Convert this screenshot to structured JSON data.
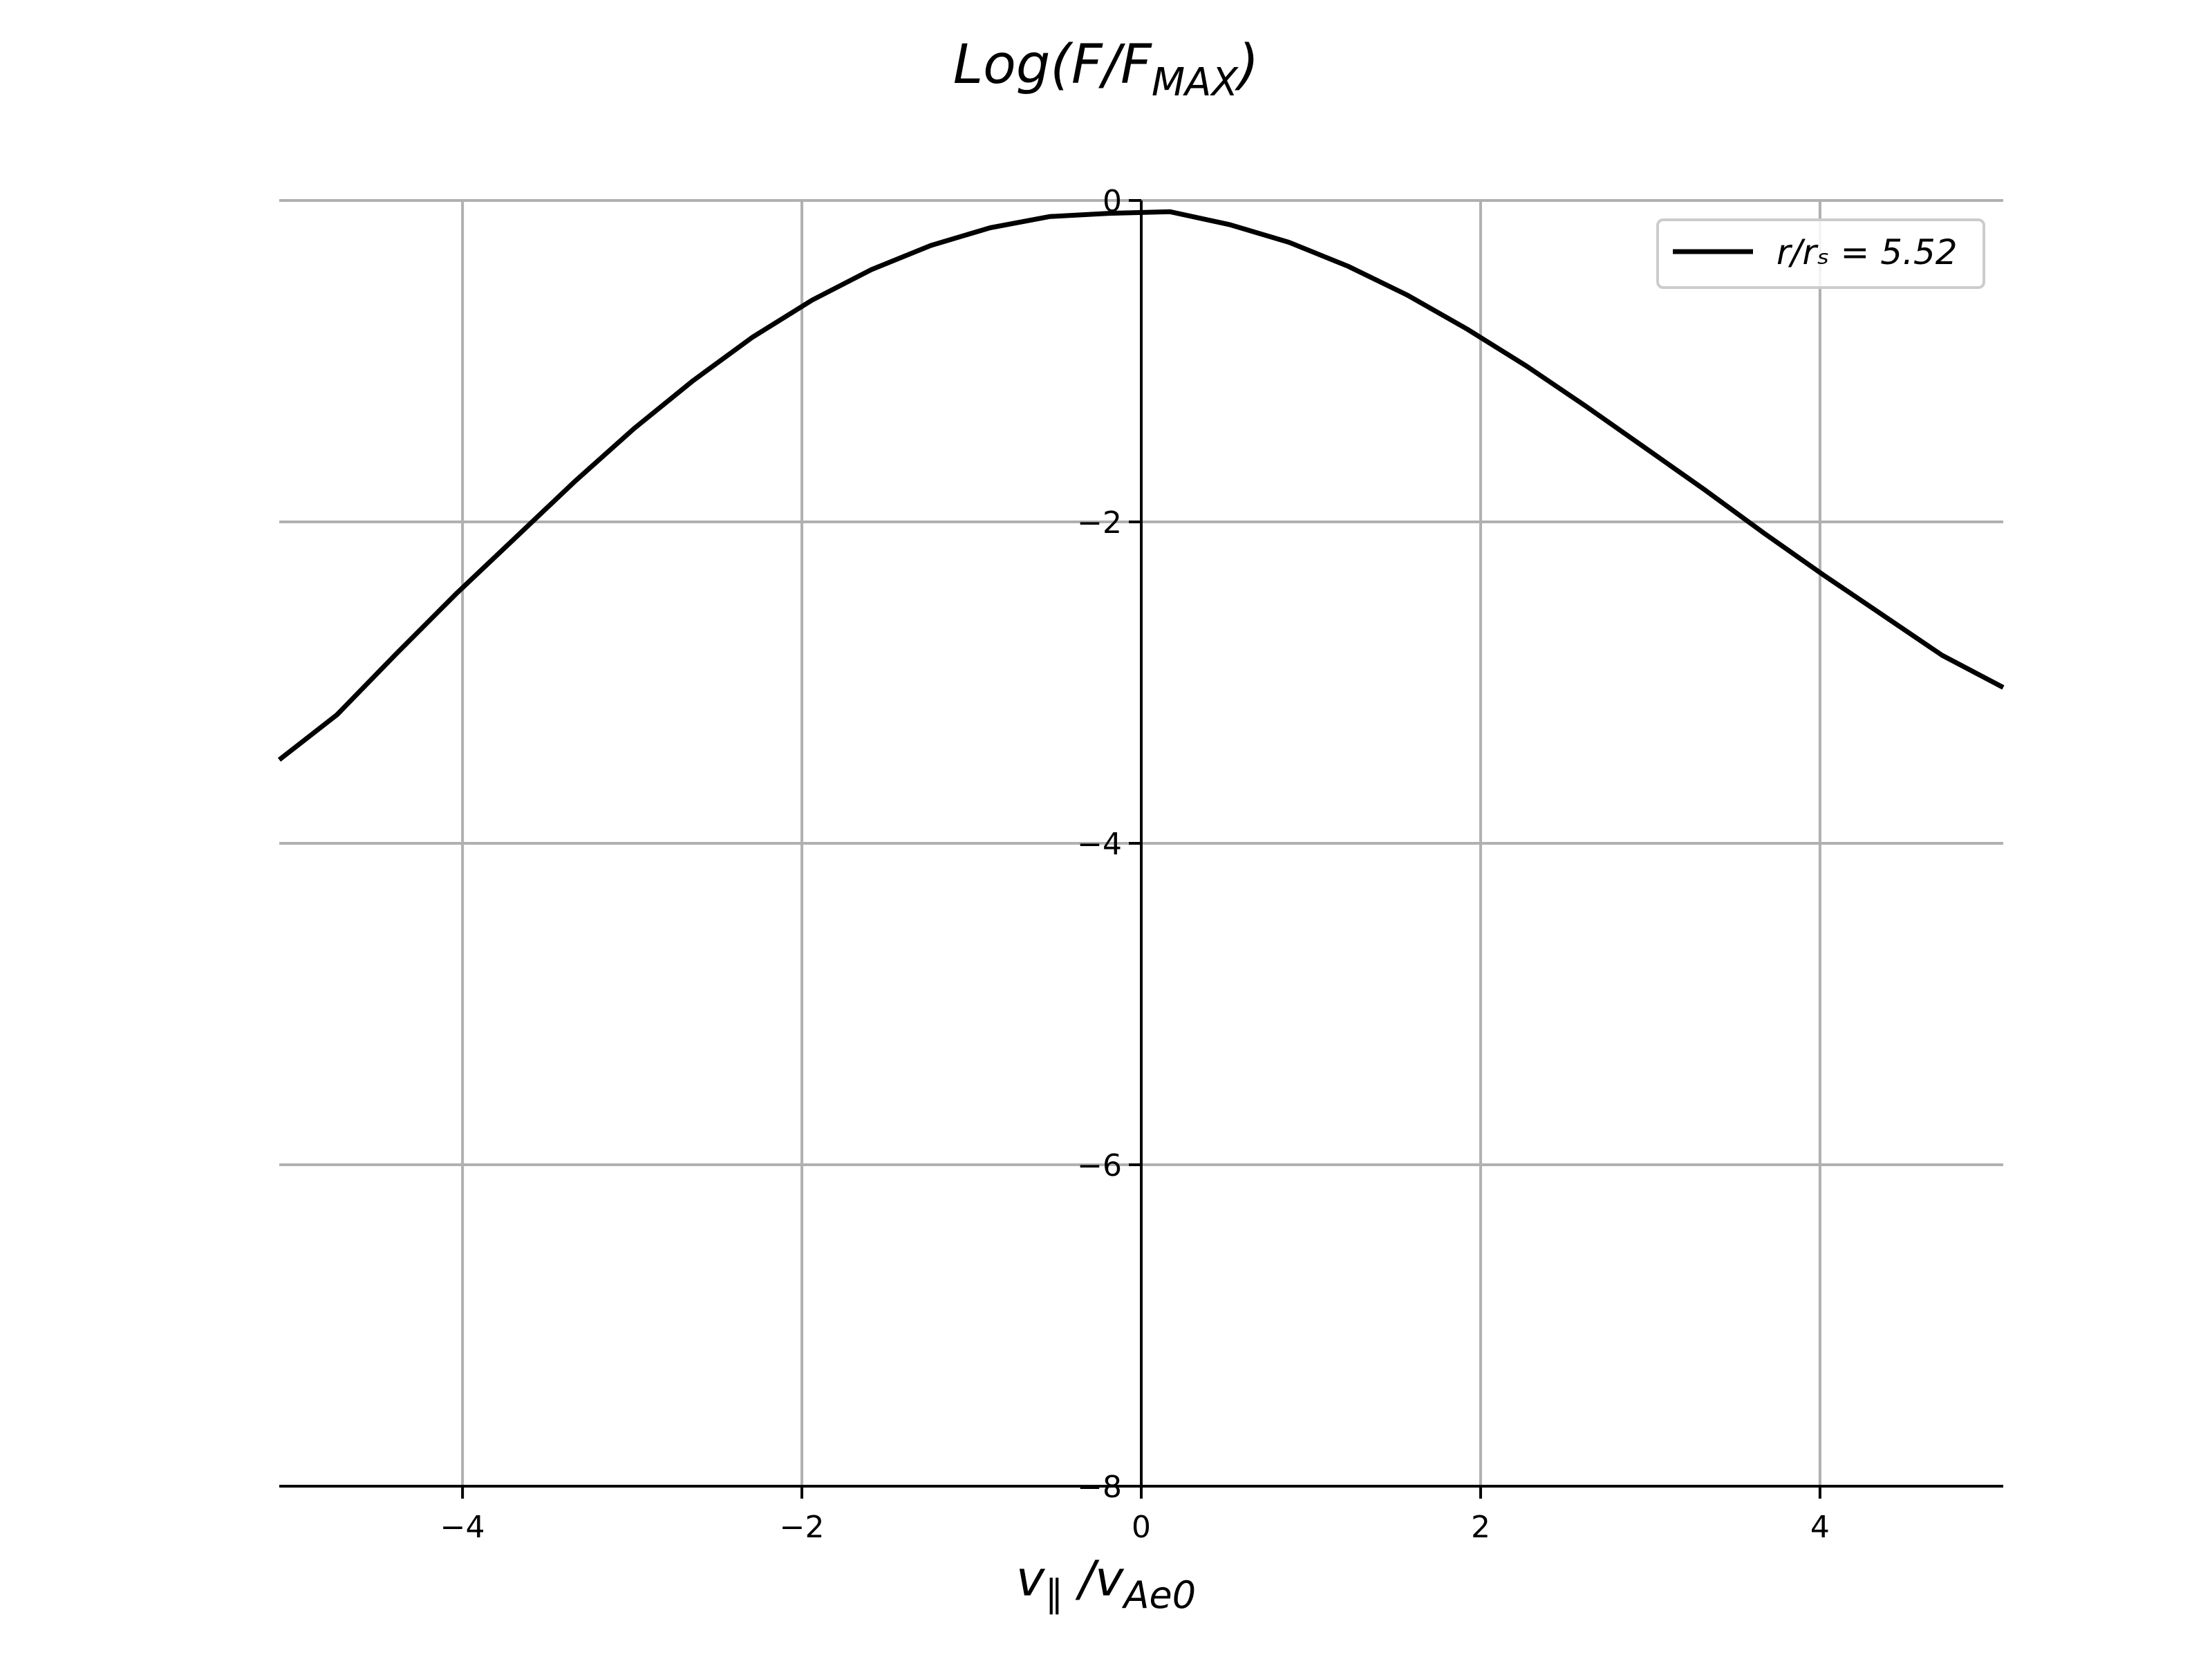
{
  "chart_data": {
    "type": "line",
    "title": {
      "main": "Log(F/F",
      "sub": "MAX",
      "close": ")"
    },
    "xlabel": {
      "main": "v",
      "par": "∥",
      "slash": " /v",
      "sub": "Ae0"
    },
    "ylabel": "",
    "xlim": [
      -5.08,
      5.08
    ],
    "ylim": [
      -8,
      0
    ],
    "xticks": [
      -4,
      -2,
      0,
      2,
      4
    ],
    "xtick_labels": [
      "−4",
      "−2",
      "0",
      "2",
      "4"
    ],
    "yticks": [
      0,
      -2,
      -4,
      -6,
      -8
    ],
    "ytick_labels": [
      "0",
      "−2",
      "−4",
      "−6",
      "−8"
    ],
    "grid": true,
    "spines": "zero-centered y axis, bottom x axis",
    "legend": {
      "position": "top-right",
      "entries": [
        "r/rₛ = 5.52"
      ]
    },
    "series": [
      {
        "name": "r/rₛ = 5.52",
        "color": "#000000",
        "points": [
          [
            -5.08,
            -3.48
          ],
          [
            -4.74,
            -3.2
          ],
          [
            -4.39,
            -2.82
          ],
          [
            -4.04,
            -2.45
          ],
          [
            -3.69,
            -2.1
          ],
          [
            -3.34,
            -1.75
          ],
          [
            -2.99,
            -1.42
          ],
          [
            -2.64,
            -1.12
          ],
          [
            -2.29,
            -0.85
          ],
          [
            -1.94,
            -0.62
          ],
          [
            -1.59,
            -0.43
          ],
          [
            -1.24,
            -0.28
          ],
          [
            -0.89,
            -0.17
          ],
          [
            -0.54,
            -0.1
          ],
          [
            -0.19,
            -0.08
          ],
          [
            0.17,
            -0.07
          ],
          [
            0.52,
            -0.15
          ],
          [
            0.87,
            -0.26
          ],
          [
            1.22,
            -0.41
          ],
          [
            1.57,
            -0.59
          ],
          [
            1.92,
            -0.8
          ],
          [
            2.27,
            -1.03
          ],
          [
            2.62,
            -1.28
          ],
          [
            2.97,
            -1.54
          ],
          [
            3.32,
            -1.8
          ],
          [
            3.67,
            -2.07
          ],
          [
            4.02,
            -2.33
          ],
          [
            4.37,
            -2.58
          ],
          [
            4.72,
            -2.83
          ],
          [
            5.08,
            -3.03
          ]
        ]
      }
    ]
  }
}
